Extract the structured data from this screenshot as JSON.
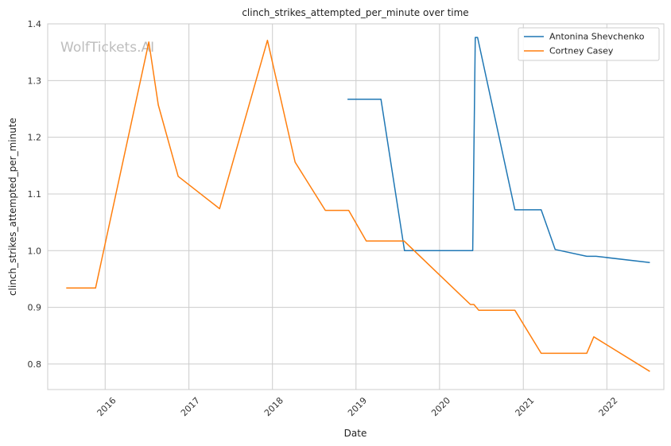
{
  "chart_data": {
    "type": "line",
    "title": "clinch_strikes_attempted_per_minute over time",
    "xlabel": "Date",
    "ylabel": "clinch_strikes_attempted_per_minute",
    "watermark": "WolfTickets.AI",
    "xlim": [
      "2015-04-25",
      "2022-09-07"
    ],
    "ylim": [
      0.755,
      1.4
    ],
    "x_ticks": [
      "2016-01-01",
      "2017-01-01",
      "2018-01-01",
      "2019-01-01",
      "2020-01-01",
      "2021-01-01",
      "2022-01-01"
    ],
    "x_tick_labels": [
      "2016",
      "2017",
      "2018",
      "2019",
      "2020",
      "2021",
      "2022"
    ],
    "y_ticks": [
      0.8,
      0.9,
      1.0,
      1.1,
      1.2,
      1.3,
      1.4
    ],
    "y_tick_labels": [
      "0.8",
      "0.9",
      "1.0",
      "1.1",
      "1.2",
      "1.3",
      "1.4"
    ],
    "grid": true,
    "legend_position": "top-right",
    "series": [
      {
        "name": "Antonina Shevchenko",
        "color": "#1f77b4",
        "points": [
          [
            "2018-11-25",
            1.267
          ],
          [
            "2019-04-20",
            1.267
          ],
          [
            "2019-08-01",
            1.0
          ],
          [
            "2020-05-25",
            1.0
          ],
          [
            "2020-06-05",
            1.376
          ],
          [
            "2020-06-15",
            1.376
          ],
          [
            "2020-11-25",
            1.072
          ],
          [
            "2021-03-20",
            1.072
          ],
          [
            "2021-05-20",
            1.002
          ],
          [
            "2021-10-05",
            0.99
          ],
          [
            "2021-11-15",
            0.99
          ],
          [
            "2022-07-08",
            0.979
          ]
        ]
      },
      {
        "name": "Cortney Casey",
        "color": "#ff7f0e",
        "points": [
          [
            "2015-07-15",
            0.934
          ],
          [
            "2015-11-20",
            0.934
          ],
          [
            "2016-07-10",
            1.368
          ],
          [
            "2016-08-20",
            1.257
          ],
          [
            "2016-11-15",
            1.131
          ],
          [
            "2017-05-15",
            1.074
          ],
          [
            "2017-12-10",
            1.371
          ],
          [
            "2018-04-10",
            1.156
          ],
          [
            "2018-08-20",
            1.071
          ],
          [
            "2018-11-30",
            1.071
          ],
          [
            "2019-02-15",
            1.017
          ],
          [
            "2019-07-30",
            1.017
          ],
          [
            "2020-05-15",
            0.905
          ],
          [
            "2020-05-30",
            0.905
          ],
          [
            "2020-06-20",
            0.895
          ],
          [
            "2020-11-25",
            0.895
          ],
          [
            "2021-03-20",
            0.819
          ],
          [
            "2021-10-05",
            0.819
          ],
          [
            "2021-11-05",
            0.848
          ],
          [
            "2022-07-08",
            0.787
          ]
        ]
      }
    ]
  }
}
